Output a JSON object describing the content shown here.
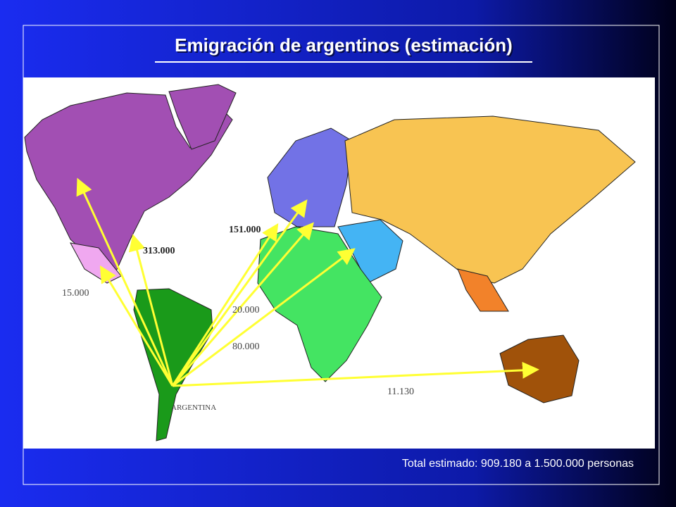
{
  "title": "Emigración de argentinos (estimación)",
  "map": {
    "labels": [
      {
        "text": "15.000"
      },
      {
        "text": "313.000"
      },
      {
        "text": "151.000"
      },
      {
        "text": "20.000"
      },
      {
        "text": "80.000"
      },
      {
        "text": "11.130"
      }
    ],
    "origin": "ARGENTINA"
  },
  "footer": "Total estimado: 909.180 a 1.500.000 personas"
}
